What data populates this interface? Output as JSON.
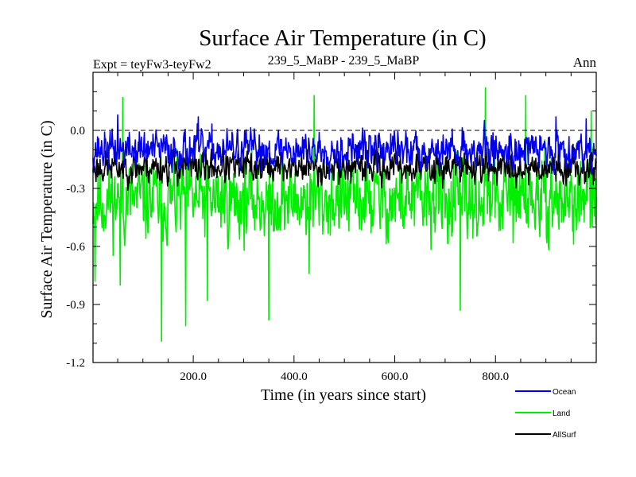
{
  "chart_data": {
    "type": "line",
    "title": "Surface Air Temperature (in C)",
    "subtitle_left": "Expt = teyFw3-teyFw2",
    "subtitle_center": "239_5_MaBP - 239_5_MaBP",
    "subtitle_right": "Ann",
    "xlabel": "Time (in years since start)",
    "ylabel": "Surface Air Temperature (in C)",
    "xlim": [
      1,
      1000
    ],
    "ylim": [
      -1.2,
      0.3
    ],
    "x_ticks": [
      200,
      400,
      600,
      800
    ],
    "x_tick_labels": [
      "200.0",
      "400.0",
      "600.0",
      "800.0"
    ],
    "y_ticks": [
      0.0,
      -0.3,
      -0.6,
      -0.9,
      -1.2
    ],
    "y_tick_labels": [
      "0.0",
      "-0.3",
      "-0.6",
      "-0.9",
      "-1.2"
    ],
    "reference_line": 0.0,
    "series": [
      {
        "name": "Land",
        "color": "#00ee00",
        "mean": -0.36,
        "noise": 0.15,
        "seed": 11,
        "spikes": [
          [
            5,
            -0.78
          ],
          [
            55,
            -0.8
          ],
          [
            137,
            -1.09
          ],
          [
            185,
            -1.01
          ],
          [
            228,
            -0.88
          ],
          [
            350,
            -0.98
          ],
          [
            430,
            -0.74
          ],
          [
            730,
            -0.93
          ],
          [
            60,
            0.17
          ],
          [
            440,
            0.18
          ],
          [
            780,
            0.22
          ],
          [
            860,
            0.18
          ],
          [
            990,
            0.1
          ]
        ]
      },
      {
        "name": "AllSurf",
        "color": "#000000",
        "mean": -0.19,
        "noise": 0.06,
        "seed": 23,
        "spikes": []
      },
      {
        "name": "Ocean",
        "color": "#0000ee",
        "mean": -0.1,
        "noise": 0.07,
        "seed": 37,
        "spikes": [
          [
            50,
            0.08
          ],
          [
            210,
            0.07
          ],
          [
            920,
            0.07
          ],
          [
            980,
            0.06
          ]
        ]
      }
    ],
    "legend": [
      {
        "name": "Ocean",
        "color": "#0000ee"
      },
      {
        "name": "Land",
        "color": "#00ee00"
      },
      {
        "name": "AllSurf",
        "color": "#000000"
      }
    ],
    "legend_position": "bottom-right"
  }
}
